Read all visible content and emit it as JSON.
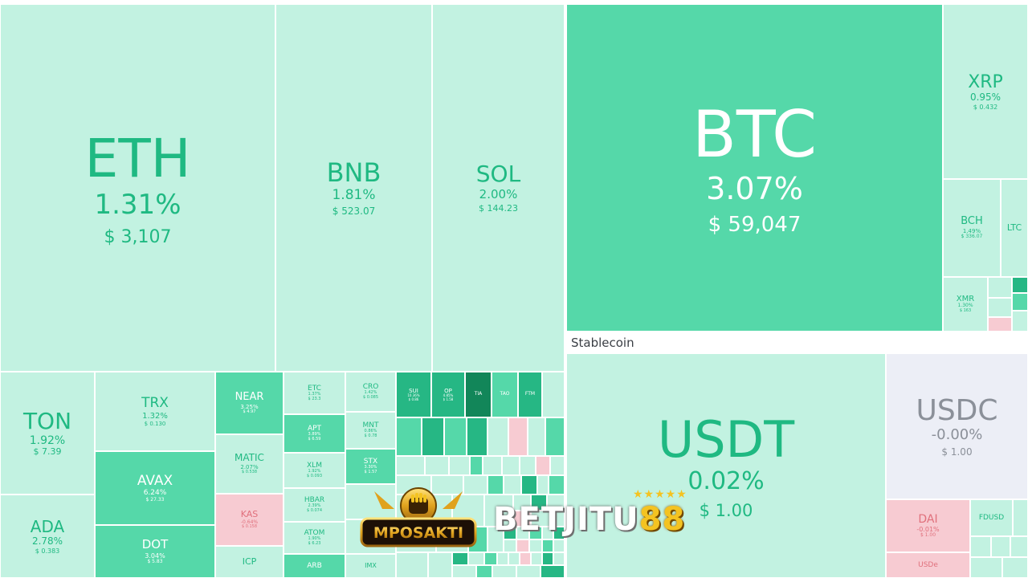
{
  "group_label": "Stablecoin",
  "coins": {
    "eth": {
      "symbol": "ETH",
      "change": "1.31%",
      "price": "$ 3,107"
    },
    "bnb": {
      "symbol": "BNB",
      "change": "1.81%",
      "price": "$ 523.07"
    },
    "sol": {
      "symbol": "SOL",
      "change": "2.00%",
      "price": "$ 144.23"
    },
    "btc": {
      "symbol": "BTC",
      "change": "3.07%",
      "price": "$ 59,047"
    },
    "xrp": {
      "symbol": "XRP",
      "change": "0.95%",
      "price": "$ 0.432"
    },
    "bch": {
      "symbol": "BCH",
      "change": "1.49%",
      "price": "$ 336.07"
    },
    "ltc": {
      "symbol": "LTC",
      "change": "",
      "price": ""
    },
    "xmr": {
      "symbol": "XMR",
      "change": "1.30%",
      "price": "$ 163"
    },
    "ton": {
      "symbol": "TON",
      "change": "1.92%",
      "price": "$ 7.39"
    },
    "ada": {
      "symbol": "ADA",
      "change": "2.78%",
      "price": "$ 0.383"
    },
    "trx": {
      "symbol": "TRX",
      "change": "1.32%",
      "price": "$ 0.130"
    },
    "avax": {
      "symbol": "AVAX",
      "change": "6.24%",
      "price": "$ 27.33"
    },
    "dot": {
      "symbol": "DOT",
      "change": "3.04%",
      "price": "$ 5.83"
    },
    "near": {
      "symbol": "NEAR",
      "change": "3.25%",
      "price": "$ 4.97"
    },
    "matic": {
      "symbol": "MATIC",
      "change": "2.07%",
      "price": "$ 0.538"
    },
    "kas": {
      "symbol": "KAS",
      "change": "-0.64%",
      "price": "$ 0.158"
    },
    "icp": {
      "symbol": "ICP",
      "change": "",
      "price": ""
    },
    "etc": {
      "symbol": "ETC",
      "change": "1.37%",
      "price": "$ 23.3"
    },
    "apt": {
      "symbol": "APT",
      "change": "3.89%",
      "price": "$ 6.59"
    },
    "xlm": {
      "symbol": "XLM",
      "change": "1.92%",
      "price": "$ 0.093"
    },
    "hbar": {
      "symbol": "HBAR",
      "change": "2.39%",
      "price": "$ 0.074"
    },
    "atom": {
      "symbol": "ATOM",
      "change": "1.90%",
      "price": "$ 6.23"
    },
    "arb": {
      "symbol": "ARB",
      "change": "",
      "price": ""
    },
    "cro": {
      "symbol": "CRO",
      "change": "1.42%",
      "price": "$ 0.085"
    },
    "mnt": {
      "symbol": "MNT",
      "change": "0.86%",
      "price": "$ 0.78"
    },
    "stx": {
      "symbol": "STX",
      "change": "3.30%",
      "price": "$ 1.57"
    },
    "imx": {
      "symbol": "IMX",
      "change": "",
      "price": ""
    },
    "sui": {
      "symbol": "SUI",
      "change": "10.36%",
      "price": "$ 0.86"
    },
    "op": {
      "symbol": "OP",
      "change": "4.85%",
      "price": "$ 1.58"
    },
    "tia": {
      "symbol": "TIA",
      "change": "",
      "price": ""
    },
    "tao": {
      "symbol": "TAO",
      "change": "",
      "price": ""
    },
    "ftm": {
      "symbol": "FTM",
      "change": "",
      "price": ""
    },
    "usdt": {
      "symbol": "USDT",
      "change": "0.02%",
      "price": "$ 1.00"
    },
    "usdc": {
      "symbol": "USDC",
      "change": "-0.00%",
      "price": "$ 1.00"
    },
    "dai": {
      "symbol": "DAI",
      "change": "-0.01%",
      "price": "$ 1.00"
    },
    "fdusd": {
      "symbol": "FDUSD",
      "change": "",
      "price": ""
    },
    "usde": {
      "symbol": "USDe",
      "change": "",
      "price": ""
    }
  },
  "logos": {
    "left": "MPOSAKTI",
    "right_a": "BETJITU",
    "right_b": "88"
  },
  "colors": {
    "light": "#c2f2e1",
    "mid": "#55d8a9",
    "dark": "#26b784",
    "deep": "#128659",
    "pink": "#f7cbd2",
    "neutral": "#eceef6"
  }
}
